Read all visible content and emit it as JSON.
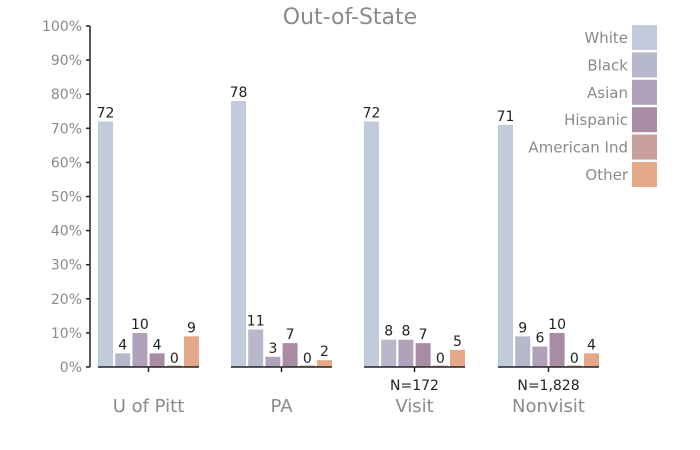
{
  "chart_data": {
    "type": "bar",
    "title": "Out-of-State",
    "xlabel": "",
    "ylabel": "",
    "ylim": [
      0,
      100
    ],
    "ytick_labels": [
      "0%",
      "10%",
      "20%",
      "30%",
      "40%",
      "50%",
      "60%",
      "70%",
      "80%",
      "90%",
      "100%"
    ],
    "categories": [
      "U of Pitt",
      "PA",
      "Visit",
      "Nonvisit"
    ],
    "category_notes": [
      "",
      "",
      "N=172",
      "N=1,828"
    ],
    "legend_position": "top-right",
    "grid": false,
    "series": [
      {
        "name": "White",
        "color": "#c2cbdb",
        "values": [
          72,
          78,
          72,
          71
        ]
      },
      {
        "name": "Black",
        "color": "#b7b8cc",
        "values": [
          4,
          11,
          8,
          9
        ]
      },
      {
        "name": "Asian",
        "color": "#b1a2bb",
        "values": [
          10,
          3,
          8,
          6
        ]
      },
      {
        "name": "Hispanic",
        "color": "#a88ca6",
        "values": [
          4,
          7,
          7,
          10
        ]
      },
      {
        "name": "American Ind",
        "color": "#c89e9a",
        "values": [
          0,
          0,
          0,
          0
        ]
      },
      {
        "name": "Other",
        "color": "#e5a888",
        "values": [
          9,
          2,
          5,
          4
        ]
      }
    ]
  }
}
